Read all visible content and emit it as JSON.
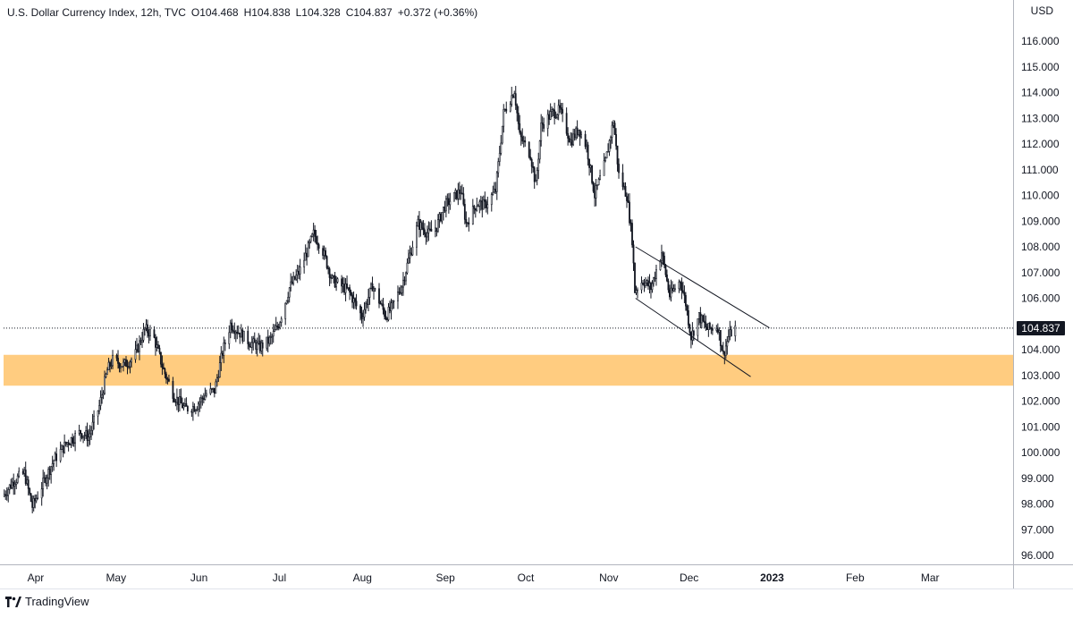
{
  "header": {
    "symbol": "U.S. Dollar Currency Index, 12h, TVC",
    "open": "O104.468",
    "high": "H104.838",
    "low": "L104.328",
    "close": "C104.837",
    "change": "+0.372 (+0.36%)"
  },
  "currency": "USD",
  "last_price_label": "104.837",
  "brand": {
    "name": "TradingView",
    "icon": "tradingview-logo-icon"
  },
  "colors": {
    "candle": "#131722",
    "support_zone": "#ffcc80",
    "channel_line": "#131722",
    "price_tag_bg": "#131722"
  },
  "chart_data": {
    "type": "candlestick",
    "title": "",
    "interval": "12h",
    "ylim": [
      95.75,
      116.55
    ],
    "y_ticks": [
      96,
      97,
      98,
      99,
      100,
      101,
      102,
      103,
      104,
      105,
      106,
      107,
      108,
      109,
      110,
      111,
      112,
      113,
      114,
      115,
      116
    ],
    "y_tick_labels": [
      "96.000",
      "97.000",
      "98.000",
      "99.000",
      "100.000",
      "101.000",
      "102.000",
      "103.000",
      "104.000",
      "105.000",
      "106.000",
      "107.000",
      "108.000",
      "109.000",
      "110.000",
      "111.000",
      "112.000",
      "113.000",
      "114.000",
      "115.000",
      "116.000"
    ],
    "x_ticks": [
      {
        "label": "Apr",
        "date": "2022-04-01"
      },
      {
        "label": "May",
        "date": "2022-05-01"
      },
      {
        "label": "Jun",
        "date": "2022-06-01"
      },
      {
        "label": "Jul",
        "date": "2022-07-01"
      },
      {
        "label": "Aug",
        "date": "2022-08-01"
      },
      {
        "label": "Sep",
        "date": "2022-09-01"
      },
      {
        "label": "Oct",
        "date": "2022-10-01"
      },
      {
        "label": "Nov",
        "date": "2022-11-01"
      },
      {
        "label": "Dec",
        "date": "2022-12-01"
      },
      {
        "label": "2023",
        "date": "2023-01-01",
        "bold": true
      },
      {
        "label": "Feb",
        "date": "2023-02-01"
      },
      {
        "label": "Mar",
        "date": "2023-03-01"
      }
    ],
    "x_range": [
      "2022-03-20",
      "2023-04-01"
    ],
    "price_path": [
      {
        "date": "2022-03-20",
        "value": 98.3
      },
      {
        "date": "2022-03-24",
        "value": 98.9
      },
      {
        "date": "2022-03-28",
        "value": 99.2
      },
      {
        "date": "2022-03-31",
        "value": 97.9
      },
      {
        "date": "2022-04-04",
        "value": 98.8
      },
      {
        "date": "2022-04-08",
        "value": 99.7
      },
      {
        "date": "2022-04-13",
        "value": 100.4
      },
      {
        "date": "2022-04-18",
        "value": 100.8
      },
      {
        "date": "2022-04-21",
        "value": 100.6
      },
      {
        "date": "2022-04-25",
        "value": 101.8
      },
      {
        "date": "2022-04-28",
        "value": 103.2
      },
      {
        "date": "2022-04-30",
        "value": 103.6
      },
      {
        "date": "2022-05-04",
        "value": 103.4
      },
      {
        "date": "2022-05-08",
        "value": 103.7
      },
      {
        "date": "2022-05-12",
        "value": 104.8
      },
      {
        "date": "2022-05-15",
        "value": 104.6
      },
      {
        "date": "2022-05-19",
        "value": 103.2
      },
      {
        "date": "2022-05-23",
        "value": 102.2
      },
      {
        "date": "2022-05-27",
        "value": 101.7
      },
      {
        "date": "2022-05-31",
        "value": 101.8
      },
      {
        "date": "2022-06-04",
        "value": 102.3
      },
      {
        "date": "2022-06-07",
        "value": 102.4
      },
      {
        "date": "2022-06-10",
        "value": 103.9
      },
      {
        "date": "2022-06-13",
        "value": 105.0
      },
      {
        "date": "2022-06-16",
        "value": 104.7
      },
      {
        "date": "2022-06-20",
        "value": 104.3
      },
      {
        "date": "2022-06-24",
        "value": 104.1
      },
      {
        "date": "2022-06-28",
        "value": 104.4
      },
      {
        "date": "2022-07-01",
        "value": 105.0
      },
      {
        "date": "2022-07-05",
        "value": 106.4
      },
      {
        "date": "2022-07-09",
        "value": 107.1
      },
      {
        "date": "2022-07-14",
        "value": 108.5
      },
      {
        "date": "2022-07-17",
        "value": 108.0
      },
      {
        "date": "2022-07-21",
        "value": 106.7
      },
      {
        "date": "2022-07-24",
        "value": 106.5
      },
      {
        "date": "2022-07-27",
        "value": 106.3
      },
      {
        "date": "2022-08-01",
        "value": 105.3
      },
      {
        "date": "2022-08-05",
        "value": 106.5
      },
      {
        "date": "2022-08-10",
        "value": 105.3
      },
      {
        "date": "2022-08-12",
        "value": 105.6
      },
      {
        "date": "2022-08-16",
        "value": 106.5
      },
      {
        "date": "2022-08-22",
        "value": 108.9
      },
      {
        "date": "2022-08-26",
        "value": 108.5
      },
      {
        "date": "2022-08-29",
        "value": 108.8
      },
      {
        "date": "2022-09-01",
        "value": 109.6
      },
      {
        "date": "2022-09-07",
        "value": 110.2
      },
      {
        "date": "2022-09-09",
        "value": 108.9
      },
      {
        "date": "2022-09-13",
        "value": 109.7
      },
      {
        "date": "2022-09-16",
        "value": 109.6
      },
      {
        "date": "2022-09-20",
        "value": 110.2
      },
      {
        "date": "2022-09-23",
        "value": 113.2
      },
      {
        "date": "2022-09-27",
        "value": 114.1
      },
      {
        "date": "2022-09-29",
        "value": 112.3
      },
      {
        "date": "2022-10-03",
        "value": 111.6
      },
      {
        "date": "2022-10-05",
        "value": 110.4
      },
      {
        "date": "2022-10-07",
        "value": 112.7
      },
      {
        "date": "2022-10-11",
        "value": 113.2
      },
      {
        "date": "2022-10-14",
        "value": 113.3
      },
      {
        "date": "2022-10-18",
        "value": 112.1
      },
      {
        "date": "2022-10-21",
        "value": 112.6
      },
      {
        "date": "2022-10-24",
        "value": 111.9
      },
      {
        "date": "2022-10-27",
        "value": 110.0
      },
      {
        "date": "2022-10-31",
        "value": 111.3
      },
      {
        "date": "2022-11-03",
        "value": 112.9
      },
      {
        "date": "2022-11-05",
        "value": 110.8
      },
      {
        "date": "2022-11-08",
        "value": 110.0
      },
      {
        "date": "2022-11-10",
        "value": 108.3
      },
      {
        "date": "2022-11-11",
        "value": 106.3
      },
      {
        "date": "2022-11-14",
        "value": 106.7
      },
      {
        "date": "2022-11-17",
        "value": 106.4
      },
      {
        "date": "2022-11-21",
        "value": 107.8
      },
      {
        "date": "2022-11-24",
        "value": 106.1
      },
      {
        "date": "2022-11-28",
        "value": 106.7
      },
      {
        "date": "2022-11-30",
        "value": 105.8
      },
      {
        "date": "2022-12-02",
        "value": 104.5
      },
      {
        "date": "2022-12-05",
        "value": 105.3
      },
      {
        "date": "2022-12-08",
        "value": 104.8
      },
      {
        "date": "2022-12-12",
        "value": 104.9
      },
      {
        "date": "2022-12-14",
        "value": 103.8
      },
      {
        "date": "2022-12-16",
        "value": 104.5
      },
      {
        "date": "2022-12-18",
        "value": 104.84
      }
    ],
    "support_zone": {
      "low": 102.6,
      "high": 103.8
    },
    "channel_lines": [
      {
        "name": "upper",
        "start": {
          "date": "2022-11-11",
          "value": 108.0
        },
        "end": {
          "date": "2022-12-31",
          "value": 104.85
        }
      },
      {
        "name": "lower",
        "start": {
          "date": "2022-11-11",
          "value": 106.0
        },
        "end": {
          "date": "2022-12-24",
          "value": 102.95
        }
      }
    ],
    "last_price": 104.837,
    "last_price_line": "dotted"
  }
}
